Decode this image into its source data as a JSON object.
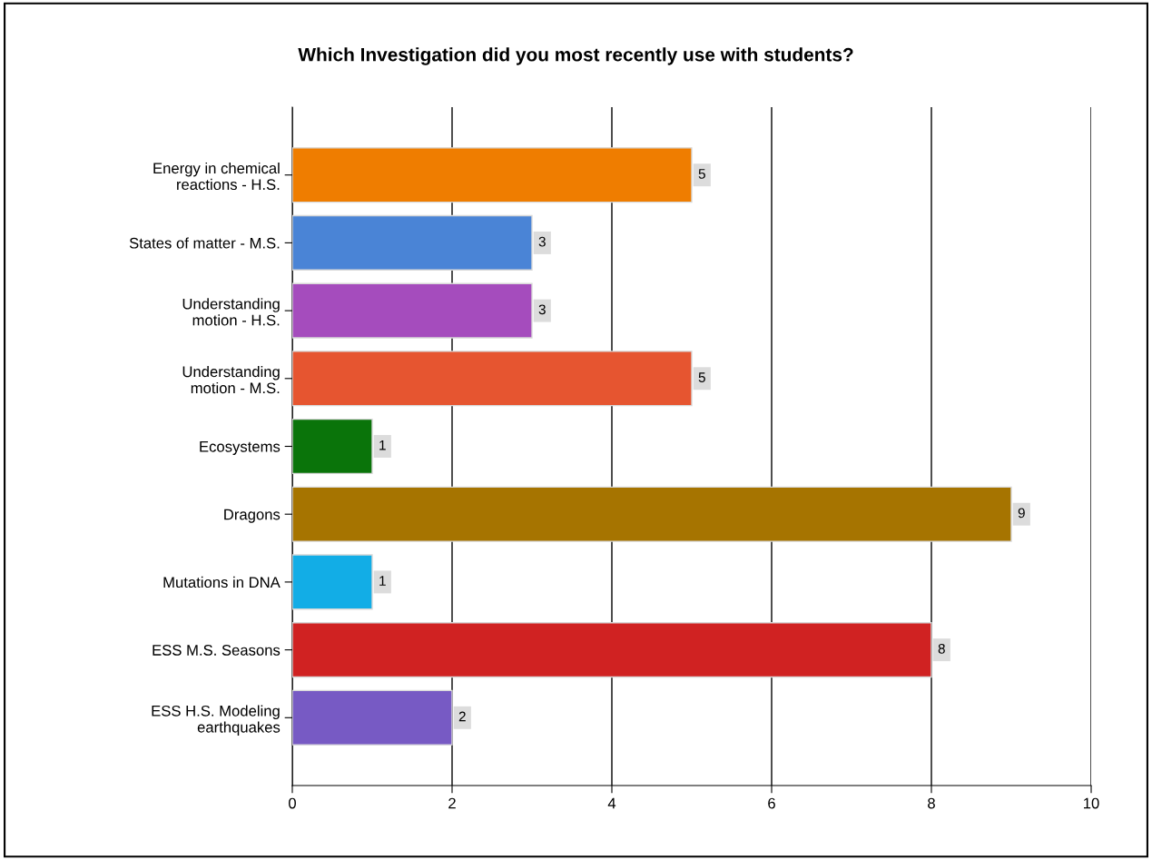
{
  "chart_data": {
    "type": "bar",
    "orientation": "horizontal",
    "title": "Which Investigation did you most recently use with students?",
    "categories": [
      "Energy in chemical\nreactions - H.S.",
      "States of matter - M.S.",
      "Understanding\nmotion - H.S.",
      "Understanding\nmotion - M.S.",
      "Ecosystems",
      "Dragons",
      "Mutations in DNA",
      "ESS M.S. Seasons",
      "ESS H.S. Modeling\nearthquakes"
    ],
    "values": [
      5,
      3,
      3,
      5,
      1,
      9,
      1,
      8,
      2
    ],
    "colors": [
      "#ef7d00",
      "#4a84d6",
      "#a54cbd",
      "#e65530",
      "#0a740a",
      "#a67400",
      "#12ade6",
      "#d02222",
      "#775ac4"
    ],
    "xlim": [
      0,
      10
    ],
    "xticks": [
      0,
      2,
      4,
      6,
      8,
      10
    ],
    "grid": "x",
    "data_labels": true,
    "legend": false
  }
}
